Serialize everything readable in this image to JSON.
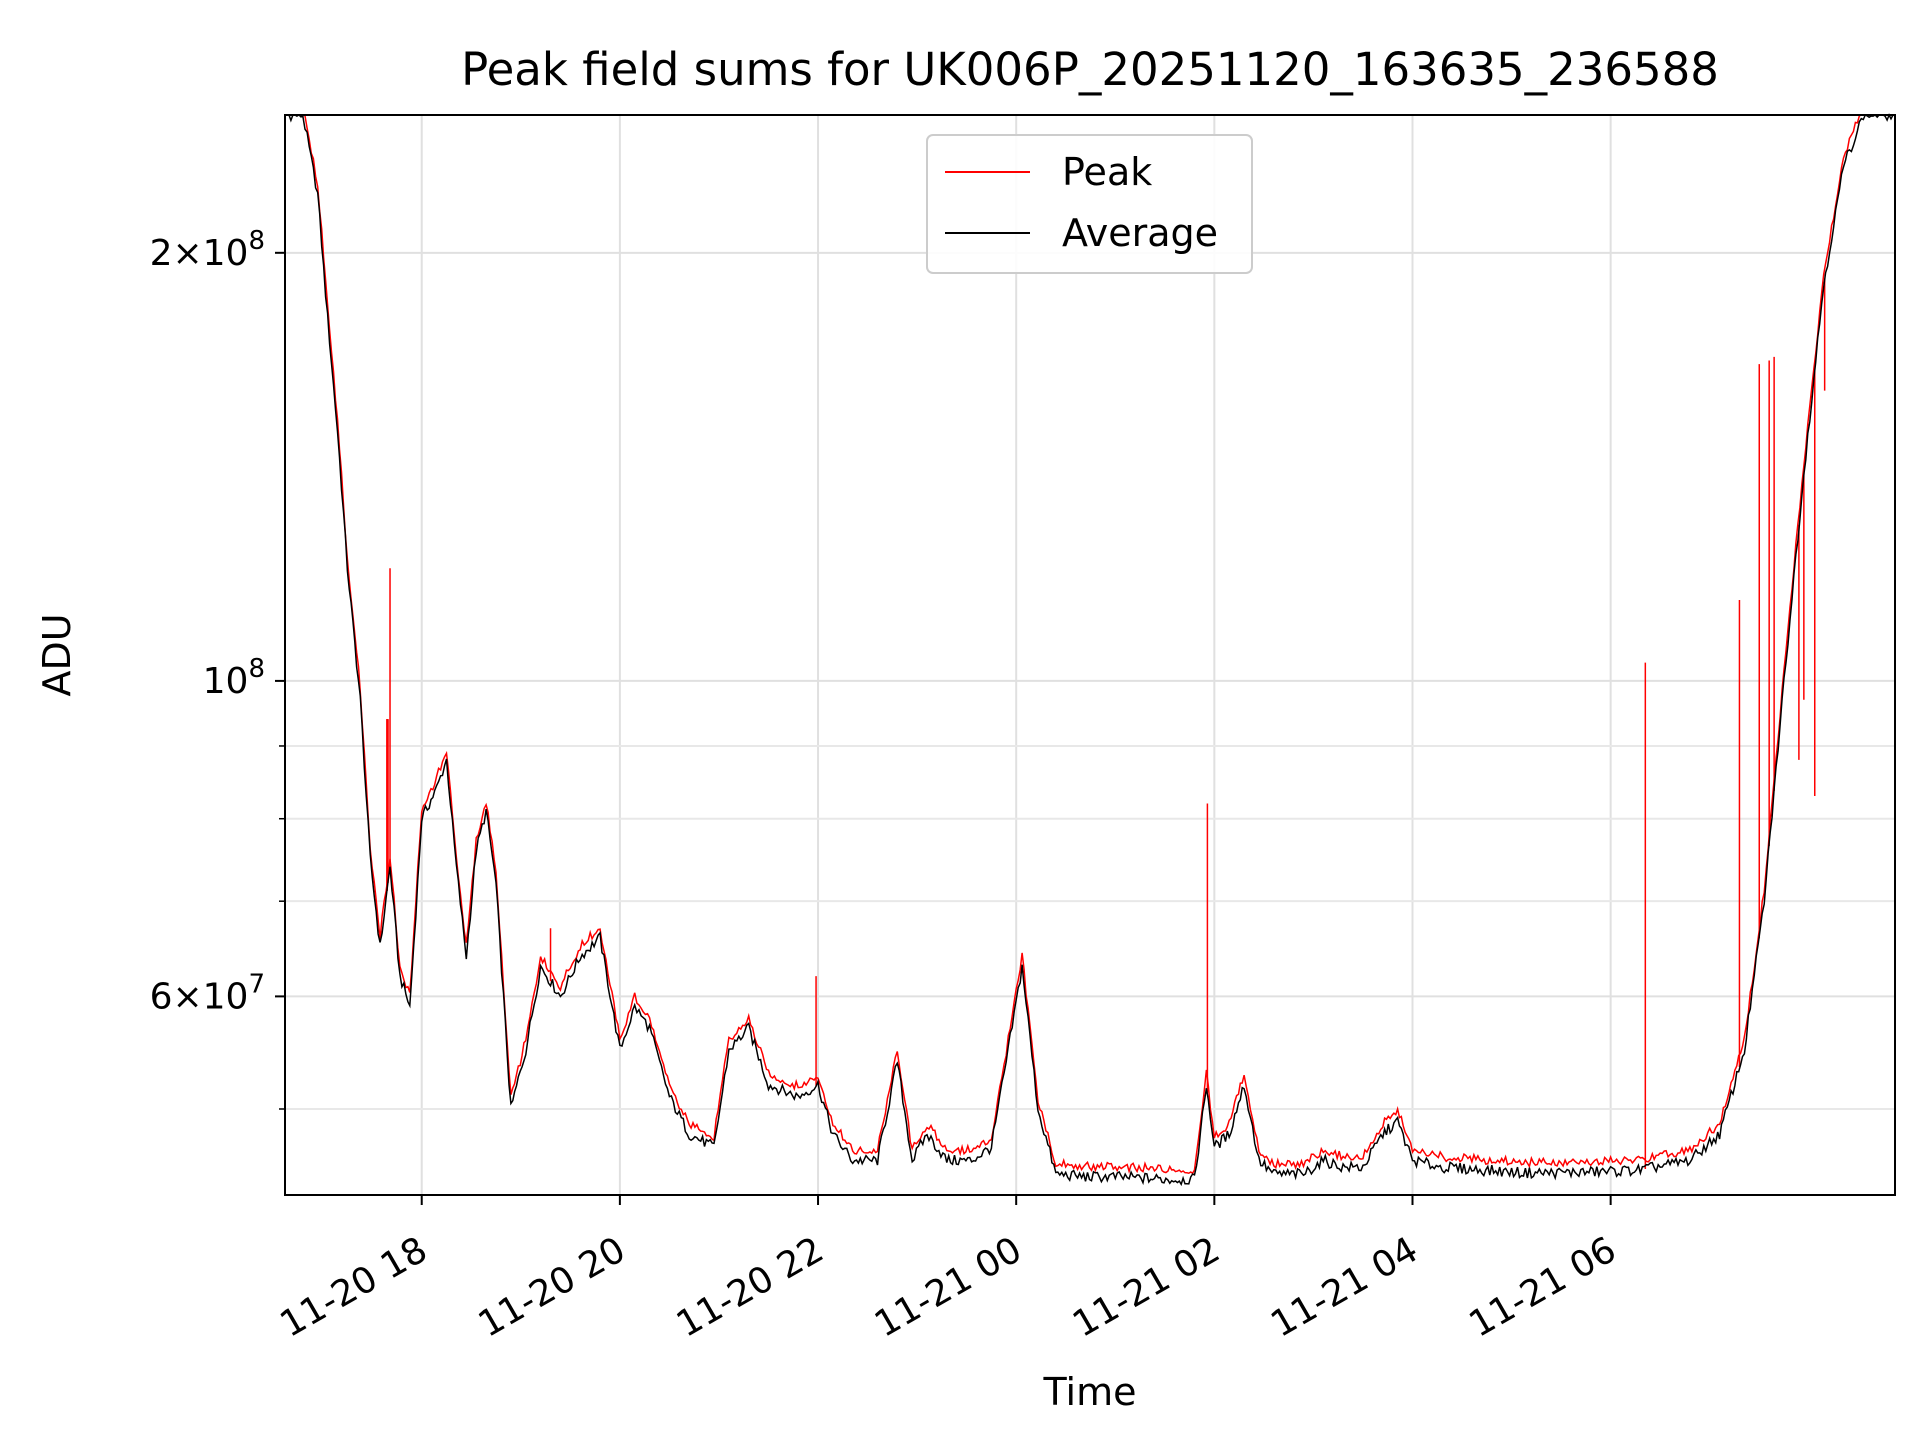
{
  "chart_data": {
    "type": "line",
    "title": "Peak field sums for UK006P_20251120_163635_236588",
    "xlabel": "Time",
    "ylabel": "ADU",
    "yscale": "log",
    "grid": true,
    "legend_position": "top-center",
    "x_range_hours": [
      -1.38,
      14.87
    ],
    "x_unit": "hours since 2025-11-20 18:00",
    "ylim": [
      43500000,
      250000000
    ],
    "x_ticks": [
      {
        "hours": 0,
        "label": "11-20 18"
      },
      {
        "hours": 2,
        "label": "11-20 20"
      },
      {
        "hours": 4,
        "label": "11-20 22"
      },
      {
        "hours": 6,
        "label": "11-21 00"
      },
      {
        "hours": 8,
        "label": "11-21 02"
      },
      {
        "hours": 10,
        "label": "11-21 04"
      },
      {
        "hours": 12,
        "label": "11-21 06"
      }
    ],
    "y_major_ticks": [
      {
        "value": 60000000,
        "mantissa": "6",
        "base": "10",
        "exp": "7"
      },
      {
        "value": 100000000,
        "mantissa": "",
        "base": "10",
        "exp": "8"
      },
      {
        "value": 200000000,
        "mantissa": "2",
        "base": "10",
        "exp": "8"
      }
    ],
    "y_minor_grid": [
      50000000,
      70000000,
      80000000,
      90000000
    ],
    "series": [
      {
        "name": "Peak",
        "color": "#ff0000",
        "spikes": [
          {
            "x": -0.35,
            "y": 94000000
          },
          {
            "x": -0.35,
            "y": 94000000
          },
          {
            "x": -0.35,
            "y": 94000000
          },
          {
            "x": -0.34,
            "y": 94000000
          },
          {
            "x": -0.32,
            "y": 120000000
          },
          {
            "x": 1.3,
            "y": 67000000
          },
          {
            "x": 3.98,
            "y": 62000000
          },
          {
            "x": 7.93,
            "y": 82000000
          },
          {
            "x": 12.35,
            "y": 103000000
          },
          {
            "x": 13.3,
            "y": 114000000
          },
          {
            "x": 13.5,
            "y": 167000000
          },
          {
            "x": 13.6,
            "y": 168000000
          },
          {
            "x": 13.65,
            "y": 169000000
          },
          {
            "x": 13.9,
            "y": 88000000
          },
          {
            "x": 13.95,
            "y": 97000000
          },
          {
            "x": 14.06,
            "y": 83000000
          },
          {
            "x": 14.16,
            "y": 160000000
          }
        ]
      },
      {
        "name": "Average",
        "color": "#000000",
        "points": [
          [
            -1.38,
            250000000
          ],
          [
            -1.2,
            250000000
          ],
          [
            -1.05,
            220000000
          ],
          [
            -0.95,
            180000000
          ],
          [
            -0.85,
            150000000
          ],
          [
            -0.75,
            120000000
          ],
          [
            -0.62,
            97000000
          ],
          [
            -0.52,
            75000000
          ],
          [
            -0.42,
            65000000
          ],
          [
            -0.32,
            74000000
          ],
          [
            -0.22,
            62000000
          ],
          [
            -0.12,
            59000000
          ],
          [
            0.0,
            80000000
          ],
          [
            0.15,
            84000000
          ],
          [
            0.25,
            88000000
          ],
          [
            0.35,
            74000000
          ],
          [
            0.45,
            64000000
          ],
          [
            0.55,
            76000000
          ],
          [
            0.65,
            81000000
          ],
          [
            0.75,
            72000000
          ],
          [
            0.9,
            50000000
          ],
          [
            1.05,
            55000000
          ],
          [
            1.2,
            63000000
          ],
          [
            1.4,
            60000000
          ],
          [
            1.6,
            64000000
          ],
          [
            1.8,
            66000000
          ],
          [
            2.0,
            55000000
          ],
          [
            2.15,
            59000000
          ],
          [
            2.3,
            57000000
          ],
          [
            2.5,
            51000000
          ],
          [
            2.7,
            48000000
          ],
          [
            2.95,
            47000000
          ],
          [
            3.1,
            55000000
          ],
          [
            3.3,
            57000000
          ],
          [
            3.5,
            52000000
          ],
          [
            3.8,
            51000000
          ],
          [
            4.0,
            52000000
          ],
          [
            4.15,
            48000000
          ],
          [
            4.35,
            46000000
          ],
          [
            4.6,
            46000000
          ],
          [
            4.8,
            54000000
          ],
          [
            4.95,
            46000000
          ],
          [
            5.1,
            48000000
          ],
          [
            5.3,
            46000000
          ],
          [
            5.55,
            46000000
          ],
          [
            5.75,
            47000000
          ],
          [
            5.92,
            55000000
          ],
          [
            6.06,
            63000000
          ],
          [
            6.22,
            50000000
          ],
          [
            6.4,
            45000000
          ],
          [
            6.7,
            44800000
          ],
          [
            7.0,
            44800000
          ],
          [
            7.3,
            44700000
          ],
          [
            7.55,
            44600000
          ],
          [
            7.8,
            44600000
          ],
          [
            7.92,
            52000000
          ],
          [
            8.0,
            47000000
          ],
          [
            8.15,
            48000000
          ],
          [
            8.3,
            52000000
          ],
          [
            8.45,
            46000000
          ],
          [
            8.6,
            45000000
          ],
          [
            8.9,
            45000000
          ],
          [
            9.1,
            46000000
          ],
          [
            9.3,
            45500000
          ],
          [
            9.5,
            45500000
          ],
          [
            9.7,
            48000000
          ],
          [
            9.85,
            49000000
          ],
          [
            10.0,
            46000000
          ],
          [
            10.3,
            45500000
          ],
          [
            10.7,
            45300000
          ],
          [
            11.1,
            45100000
          ],
          [
            11.5,
            45100000
          ],
          [
            12.0,
            45200000
          ],
          [
            12.3,
            45300000
          ],
          [
            12.8,
            46000000
          ],
          [
            13.1,
            48000000
          ],
          [
            13.35,
            55000000
          ],
          [
            13.55,
            70000000
          ],
          [
            13.75,
            100000000
          ],
          [
            13.95,
            140000000
          ],
          [
            14.15,
            190000000
          ],
          [
            14.35,
            230000000
          ],
          [
            14.55,
            250000000
          ],
          [
            14.87,
            250000000
          ]
        ]
      }
    ]
  }
}
